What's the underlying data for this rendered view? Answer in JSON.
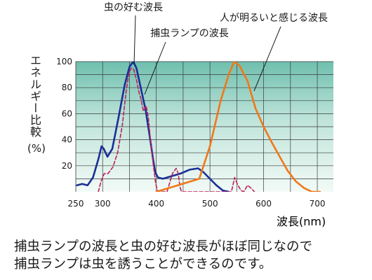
{
  "chart_data": {
    "type": "line",
    "ylabel": "エネルギー比較",
    "ylabel_unit": "(%)",
    "xlabel": "波長(nm)",
    "xlim": [
      250,
      730
    ],
    "ylim": [
      0,
      100
    ],
    "x_ticks": [
      "250",
      "300",
      "400",
      "500",
      "600",
      "700"
    ],
    "y_ticks": [
      "20",
      "40",
      "60",
      "80",
      "100"
    ],
    "grid": true,
    "series": [
      {
        "name": "虫の好む波長",
        "color": "#1a2f96",
        "style": "solid",
        "points": [
          [
            252,
            5
          ],
          [
            262,
            6
          ],
          [
            272,
            5
          ],
          [
            282,
            11
          ],
          [
            292,
            25
          ],
          [
            298,
            35
          ],
          [
            302,
            33
          ],
          [
            309,
            27
          ],
          [
            318,
            33
          ],
          [
            330,
            58
          ],
          [
            341,
            82
          ],
          [
            350,
            96
          ],
          [
            357,
            100
          ],
          [
            363,
            95
          ],
          [
            371,
            80
          ],
          [
            380,
            63
          ],
          [
            388,
            42
          ],
          [
            394,
            25
          ],
          [
            398,
            15
          ],
          [
            403,
            11
          ],
          [
            412,
            10
          ],
          [
            428,
            12
          ],
          [
            445,
            14
          ],
          [
            462,
            17
          ],
          [
            478,
            18
          ],
          [
            488,
            15
          ],
          [
            500,
            10
          ],
          [
            512,
            5
          ],
          [
            524,
            1
          ],
          [
            535,
            0
          ]
        ]
      },
      {
        "name": "捕虫ランプの波長",
        "color": "#c0205a",
        "style": "dashed",
        "points": [
          [
            292,
            0
          ],
          [
            297,
            8
          ],
          [
            303,
            14
          ],
          [
            310,
            14
          ],
          [
            319,
            19
          ],
          [
            328,
            30
          ],
          [
            337,
            52
          ],
          [
            344,
            78
          ],
          [
            349,
            91
          ],
          [
            353,
            95
          ],
          [
            358,
            94
          ],
          [
            363,
            86
          ],
          [
            368,
            76
          ],
          [
            371,
            72
          ],
          [
            376,
            62
          ],
          [
            381,
            66
          ],
          [
            385,
            58
          ],
          [
            389,
            40
          ],
          [
            394,
            22
          ],
          [
            399,
            6
          ],
          [
            403,
            0
          ],
          [
            420,
            0
          ],
          [
            430,
            14
          ],
          [
            437,
            18
          ],
          [
            441,
            14
          ],
          [
            444,
            4
          ],
          [
            447,
            0
          ],
          [
            540,
            0
          ],
          [
            546,
            11
          ],
          [
            552,
            5
          ],
          [
            558,
            1
          ],
          [
            563,
            0
          ],
          [
            570,
            5
          ],
          [
            576,
            3
          ],
          [
            583,
            0
          ]
        ]
      },
      {
        "name": "人が明るいと感じる波長",
        "color": "#f07818",
        "style": "solid",
        "points": [
          [
            400,
            0
          ],
          [
            440,
            5
          ],
          [
            480,
            10
          ],
          [
            500,
            35
          ],
          [
            520,
            70
          ],
          [
            535,
            90
          ],
          [
            545,
            100
          ],
          [
            555,
            97
          ],
          [
            570,
            85
          ],
          [
            585,
            64
          ],
          [
            600,
            50
          ],
          [
            615,
            38
          ],
          [
            630,
            27
          ],
          [
            645,
            16
          ],
          [
            660,
            8
          ],
          [
            675,
            3
          ],
          [
            690,
            0
          ],
          [
            705,
            0
          ]
        ]
      }
    ],
    "annotations": [
      {
        "text": "虫の好む波長",
        "x": 190,
        "y": 15
      },
      {
        "text": "捕虫ランプの波長",
        "x": 270,
        "y": 52
      },
      {
        "text": "人が明るいと感じる波長",
        "x": 390,
        "y": 30
      }
    ]
  },
  "caption": "捕虫ランプの波長と虫の好む波長がほぼ同じなので\n捕虫ランプは虫を誘うことができるのです。"
}
